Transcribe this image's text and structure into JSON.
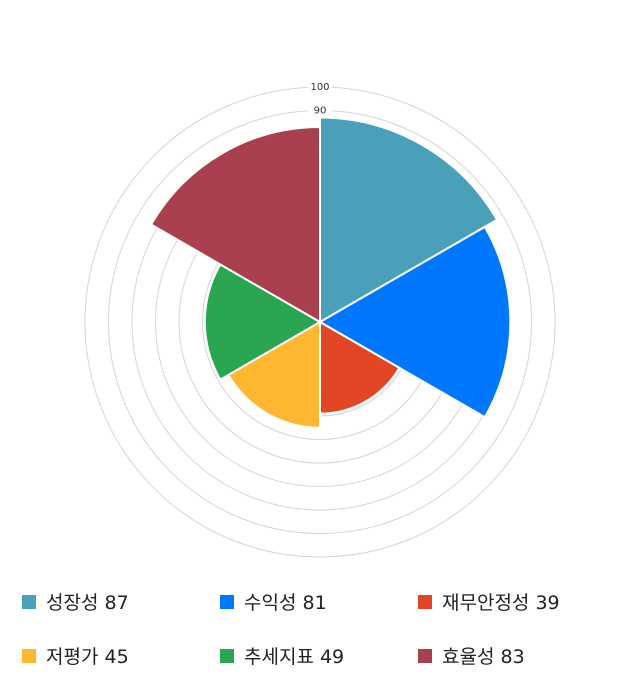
{
  "chart_data": {
    "type": "polar-area",
    "categories": [
      "성장성",
      "수익성",
      "재무안정성",
      "저평가",
      "추세지표",
      "효율성"
    ],
    "values": [
      87,
      81,
      39,
      45,
      49,
      83
    ],
    "colors": [
      "#4aa0b8",
      "#0077ff",
      "#e24624",
      "#ffb732",
      "#2aa653",
      "#a8404f"
    ],
    "rlim": [
      0,
      100
    ],
    "tick_labels": [
      "90",
      "100"
    ],
    "grid": true,
    "legend_position": "bottom",
    "legend": [
      "성장성 87",
      "수익성 81",
      "재무안정성 39",
      "저평가 45",
      "추세지표 49",
      "효율성 83"
    ]
  }
}
